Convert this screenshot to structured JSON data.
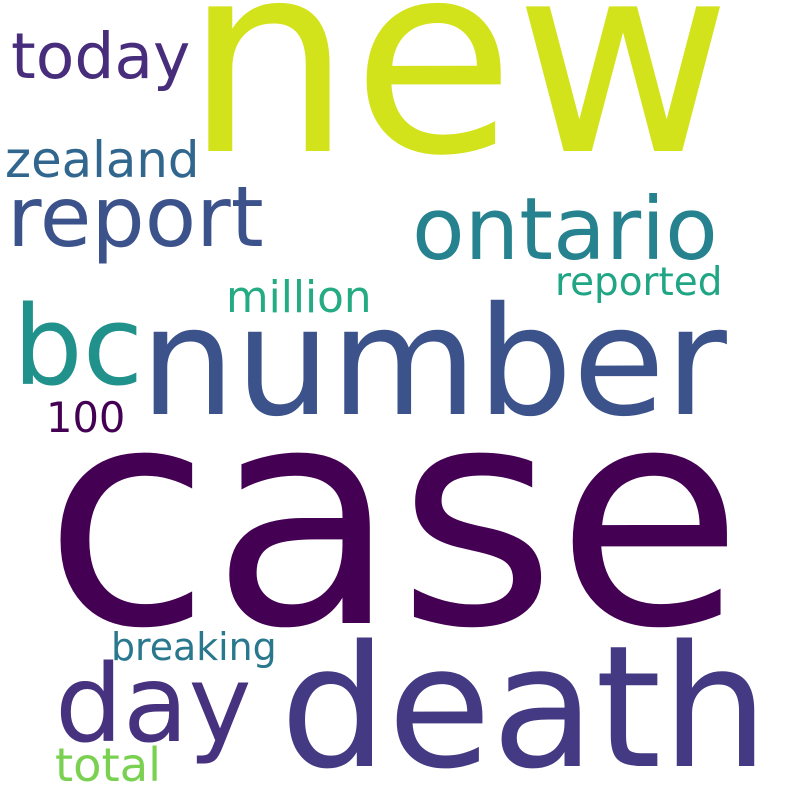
{
  "words": [
    {
      "key": "case",
      "text": "case",
      "color": "#440154"
    },
    {
      "key": "new",
      "text": "new",
      "color": "#d2e21b"
    },
    {
      "key": "number",
      "text": "number",
      "color": "#3b528b"
    },
    {
      "key": "death",
      "text": "death",
      "color": "#443a83"
    },
    {
      "key": "report",
      "text": "report",
      "color": "#3b528b"
    },
    {
      "key": "ontario",
      "text": "ontario",
      "color": "#26828e"
    },
    {
      "key": "bc",
      "text": "bc",
      "color": "#21918c"
    },
    {
      "key": "day",
      "text": "day",
      "color": "#46327e"
    },
    {
      "key": "today",
      "text": "today",
      "color": "#472d7b"
    },
    {
      "key": "zealand",
      "text": "zealand",
      "color": "#31668e"
    },
    {
      "key": "reported",
      "text": "reported",
      "color": "#21a685"
    },
    {
      "key": "million",
      "text": "million",
      "color": "#25ab82"
    },
    {
      "key": "breaking",
      "text": "breaking",
      "color": "#2a788e"
    },
    {
      "key": "total",
      "text": "total",
      "color": "#7ad151"
    },
    {
      "key": "n100",
      "text": "100",
      "color": "#440154"
    }
  ]
}
